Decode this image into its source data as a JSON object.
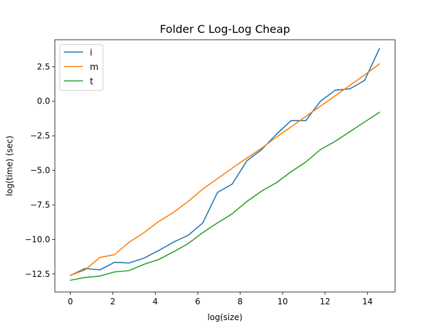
{
  "chart_data": {
    "type": "line",
    "title": "Folder C Log-Log Cheap",
    "xlabel": "log(size)",
    "ylabel": "log(time) (sec)",
    "xlim": [
      -0.73,
      15.3
    ],
    "ylim": [
      -13.8,
      4.45
    ],
    "xticks": [
      0,
      2,
      4,
      6,
      8,
      10,
      12,
      14
    ],
    "xtick_labels": [
      "0",
      "2",
      "4",
      "6",
      "8",
      "10",
      "12",
      "14"
    ],
    "yticks": [
      -12.5,
      -10.0,
      -7.5,
      -5.0,
      -2.5,
      0.0,
      2.5
    ],
    "ytick_labels": [
      "−12.5",
      "−10.0",
      "−7.5",
      "−5.0",
      "−2.5",
      "0.0",
      "2.5"
    ],
    "grid": false,
    "legend_position": "top-left",
    "x": [
      0,
      0.69,
      1.39,
      2.08,
      2.77,
      3.47,
      4.16,
      4.85,
      5.55,
      6.24,
      6.93,
      7.62,
      8.32,
      9.01,
      9.7,
      10.4,
      11.09,
      11.78,
      12.48,
      13.17,
      13.86,
      14.56
    ],
    "series": [
      {
        "name": "i",
        "color": "#1f77b4",
        "values": [
          -12.6,
          -12.1,
          -12.2,
          -11.65,
          -11.7,
          -11.35,
          -10.8,
          -10.2,
          -9.7,
          -8.8,
          -6.6,
          -6.0,
          -4.3,
          -3.5,
          -2.4,
          -1.4,
          -1.4,
          0.0,
          0.8,
          0.9,
          1.5,
          3.8
        ]
      },
      {
        "name": "m",
        "color": "#ff7f0e",
        "values": [
          -12.6,
          -12.2,
          -11.3,
          -11.1,
          -10.2,
          -9.5,
          -8.7,
          -8.05,
          -7.25,
          -6.35,
          -5.6,
          -4.85,
          -4.1,
          -3.4,
          -2.6,
          -1.85,
          -1.1,
          -0.35,
          0.4,
          1.15,
          1.9,
          2.7
        ]
      },
      {
        "name": "t",
        "color": "#2ca02c",
        "values": [
          -12.95,
          -12.75,
          -12.65,
          -12.35,
          -12.25,
          -11.8,
          -11.45,
          -10.9,
          -10.3,
          -9.5,
          -8.8,
          -8.15,
          -7.25,
          -6.5,
          -5.9,
          -5.1,
          -4.4,
          -3.5,
          -2.9,
          -2.2,
          -1.5,
          -0.8
        ]
      }
    ]
  }
}
